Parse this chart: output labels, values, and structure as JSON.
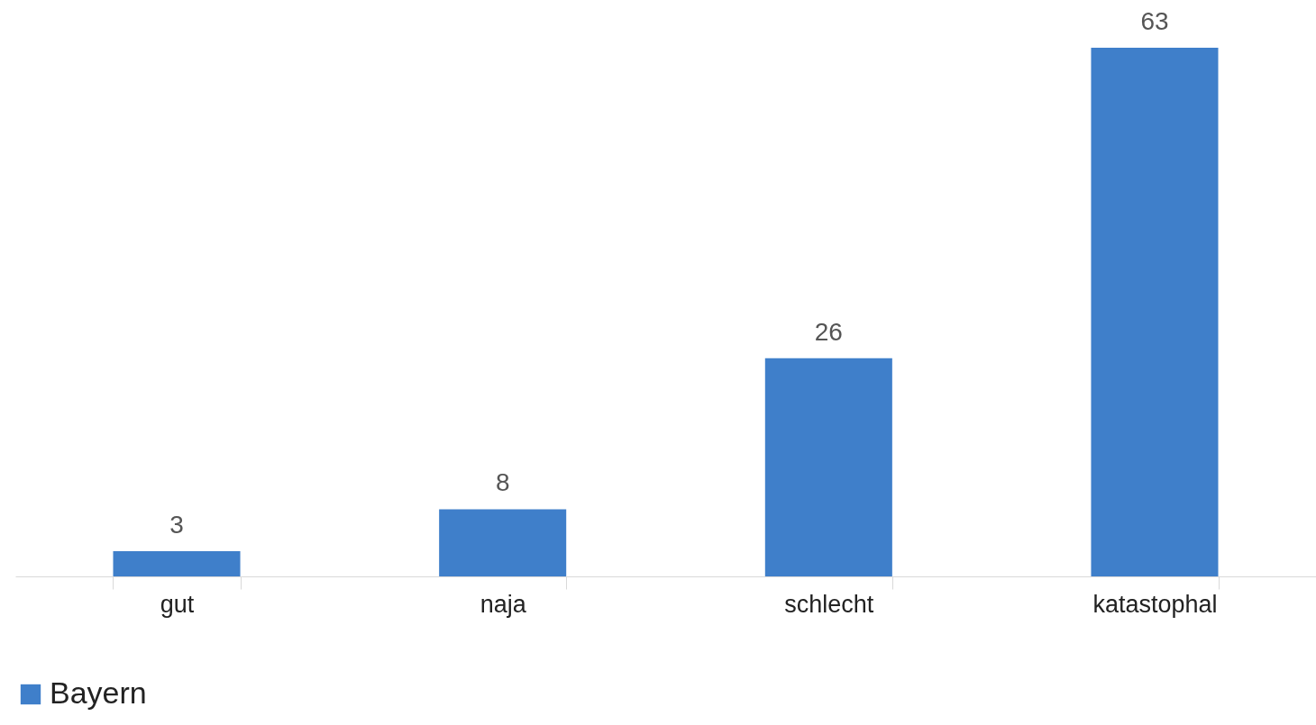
{
  "chart_data": {
    "type": "bar",
    "categories": [
      "gut",
      "naja",
      "schlecht",
      "katastophal"
    ],
    "series": [
      {
        "name": "Bayern",
        "color": "#3f7fca",
        "values": [
          3,
          8,
          26,
          63
        ]
      }
    ],
    "data_labels": true,
    "legend": "bottom",
    "grid": false
  }
}
